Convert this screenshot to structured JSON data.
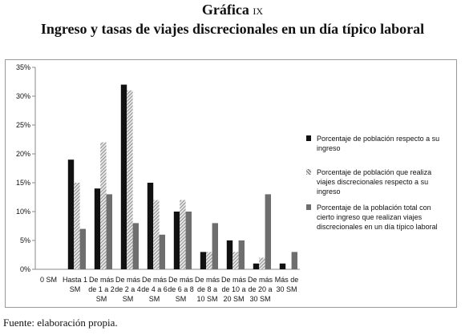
{
  "header": {
    "label": "Gráfica",
    "roman": "ix",
    "title": "Ingreso y tasas de viajes discrecionales en un día típico laboral"
  },
  "source": "Fuente: elaboración propia.",
  "chart_data": {
    "type": "bar",
    "categories": [
      [
        "0 SM"
      ],
      [
        "Hasta 1",
        "SM"
      ],
      [
        "De más",
        "de 1 a 2",
        "SM"
      ],
      [
        "De más",
        "de 2 a 4",
        "SM"
      ],
      [
        "De más",
        "de 4 a 6",
        "SM"
      ],
      [
        "De más",
        "de 6 a 8",
        "SM"
      ],
      [
        "De más",
        "de 8 a",
        "10 SM"
      ],
      [
        "De más",
        "de 10 a",
        "20 SM"
      ],
      [
        "De más",
        "de 20 a",
        "30 SM"
      ],
      [
        "Más de",
        "30 SM"
      ]
    ],
    "series": [
      {
        "name": "Porcentaje de población respecto a su ingreso",
        "color": "#111111",
        "pattern": "solid",
        "values": [
          0,
          19,
          14,
          32,
          15,
          10,
          3,
          5,
          1,
          1
        ]
      },
      {
        "name": "Porcentaje de población que realiza viajes discrecionales respecto a su ingreso",
        "color": "#9a9a9a",
        "pattern": "hatch",
        "values": [
          0,
          15,
          22,
          31,
          12,
          12,
          3,
          3,
          2,
          0
        ]
      },
      {
        "name": "Porcentaje de la población total con cierto ingreso que realizan viajes discrecionales en un día típico laboral",
        "color": "#6e6e6e",
        "pattern": "gray",
        "values": [
          0,
          7,
          13,
          8,
          6,
          10,
          8,
          5,
          13,
          3
        ]
      }
    ],
    "yticks": [
      "0%",
      "5%",
      "10%",
      "15%",
      "20%",
      "25%",
      "30%",
      "35%"
    ],
    "ylim": [
      0,
      35
    ],
    "grid": false,
    "legend": "right"
  }
}
